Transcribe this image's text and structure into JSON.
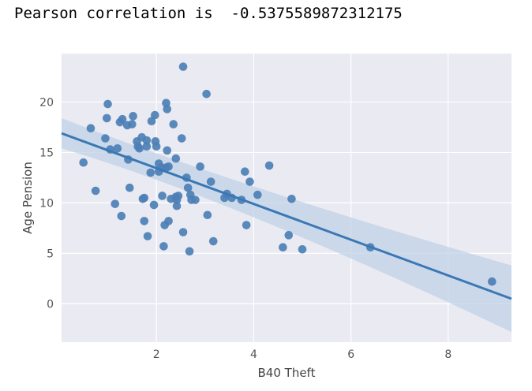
{
  "output": {
    "text": "Pearson correlation is  -0.5375589872312175"
  },
  "colors": {
    "plot_background": "#eaeaf2",
    "grid": "#ffffff",
    "point": "#4c7fb5",
    "fit_line": "#3a78b5",
    "confidence_band": "#c0d2e6"
  },
  "chart_data": {
    "type": "scatter",
    "title": "",
    "xlabel": "B40 Theft",
    "ylabel": "Age Pension",
    "xlim": [
      0.05,
      9.3
    ],
    "ylim": [
      -3.8,
      24.8
    ],
    "xticks": [
      2,
      4,
      6,
      8
    ],
    "yticks": [
      0,
      5,
      10,
      15,
      20
    ],
    "grid": true,
    "regression": {
      "show": true,
      "start": [
        0.05,
        16.9
      ],
      "end": [
        9.3,
        0.5
      ],
      "ci_upper": [
        [
          0.05,
          18.4
        ],
        [
          3.5,
          11.9
        ],
        [
          9.3,
          3.8
        ]
      ],
      "ci_lower": [
        [
          0.05,
          15.4
        ],
        [
          3.5,
          10.5
        ],
        [
          9.3,
          -2.8
        ]
      ]
    },
    "points": [
      [
        0.5,
        14.0
      ],
      [
        0.65,
        17.4
      ],
      [
        0.75,
        11.2
      ],
      [
        0.95,
        16.4
      ],
      [
        1.0,
        19.8
      ],
      [
        0.98,
        18.4
      ],
      [
        1.05,
        15.3
      ],
      [
        1.15,
        9.9
      ],
      [
        1.2,
        15.4
      ],
      [
        1.25,
        18.0
      ],
      [
        1.3,
        18.3
      ],
      [
        1.28,
        8.7
      ],
      [
        1.4,
        17.7
      ],
      [
        1.42,
        14.3
      ],
      [
        1.45,
        11.5
      ],
      [
        1.5,
        17.8
      ],
      [
        1.52,
        18.6
      ],
      [
        1.6,
        16.1
      ],
      [
        1.62,
        15.6
      ],
      [
        1.65,
        15.4
      ],
      [
        1.7,
        16.5
      ],
      [
        1.72,
        10.4
      ],
      [
        1.75,
        10.5
      ],
      [
        1.75,
        8.2
      ],
      [
        1.8,
        15.6
      ],
      [
        1.8,
        16.2
      ],
      [
        1.82,
        6.7
      ],
      [
        1.88,
        13.0
      ],
      [
        1.9,
        18.1
      ],
      [
        1.95,
        9.8
      ],
      [
        1.97,
        18.7
      ],
      [
        1.98,
        16.1
      ],
      [
        2.0,
        15.6
      ],
      [
        2.05,
        13.9
      ],
      [
        2.05,
        13.1
      ],
      [
        2.1,
        13.5
      ],
      [
        2.12,
        10.7
      ],
      [
        2.15,
        5.7
      ],
      [
        2.17,
        7.8
      ],
      [
        2.2,
        19.9
      ],
      [
        2.22,
        19.3
      ],
      [
        2.22,
        15.2
      ],
      [
        2.2,
        13.5
      ],
      [
        2.25,
        13.6
      ],
      [
        2.25,
        8.2
      ],
      [
        2.3,
        10.4
      ],
      [
        2.35,
        17.8
      ],
      [
        2.4,
        14.4
      ],
      [
        2.4,
        10.6
      ],
      [
        2.42,
        10.3
      ],
      [
        2.42,
        9.7
      ],
      [
        2.45,
        10.7
      ],
      [
        2.52,
        16.4
      ],
      [
        2.55,
        23.5
      ],
      [
        2.55,
        7.1
      ],
      [
        2.62,
        12.5
      ],
      [
        2.65,
        11.5
      ],
      [
        2.68,
        5.2
      ],
      [
        2.7,
        10.8
      ],
      [
        2.72,
        10.3
      ],
      [
        2.8,
        10.3
      ],
      [
        2.9,
        13.6
      ],
      [
        3.03,
        20.8
      ],
      [
        3.05,
        8.8
      ],
      [
        3.12,
        12.1
      ],
      [
        3.17,
        6.2
      ],
      [
        3.4,
        10.5
      ],
      [
        3.45,
        10.9
      ],
      [
        3.55,
        10.5
      ],
      [
        3.75,
        10.3
      ],
      [
        3.82,
        13.1
      ],
      [
        3.85,
        7.8
      ],
      [
        3.92,
        12.1
      ],
      [
        4.08,
        10.8
      ],
      [
        4.32,
        13.7
      ],
      [
        4.6,
        5.6
      ],
      [
        4.72,
        6.8
      ],
      [
        4.78,
        10.4
      ],
      [
        5.0,
        5.4
      ],
      [
        6.4,
        5.6
      ],
      [
        8.9,
        2.2
      ]
    ]
  }
}
